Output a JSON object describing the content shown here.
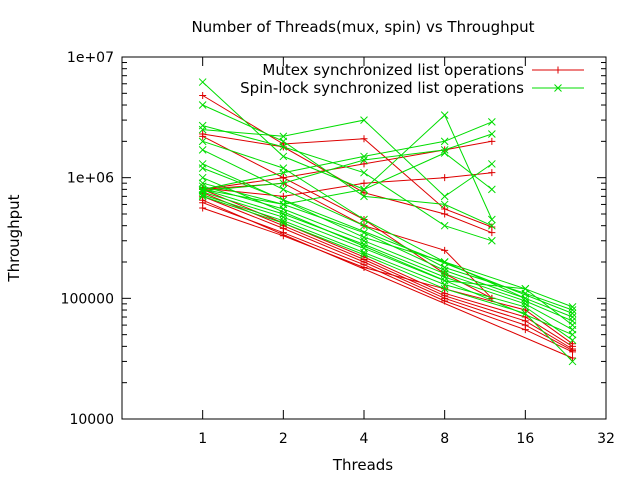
{
  "chart_data": {
    "type": "line",
    "title": "Number of Threads(mux, spin) vs Throughput",
    "xlabel": "Threads",
    "ylabel": "Throughput",
    "x_scale": "log2",
    "y_scale": "log10",
    "xlim": [
      0.5,
      32
    ],
    "ylim": [
      10000,
      10000000
    ],
    "x_ticks": [
      1,
      2,
      4,
      8,
      16,
      32
    ],
    "x_tick_labels": [
      "1",
      "2",
      "4",
      "8",
      "16",
      "32"
    ],
    "y_ticks": [
      10000,
      100000,
      1000000,
      10000000
    ],
    "y_tick_labels": [
      "10000",
      "100000",
      "1e+06",
      "1e+07"
    ],
    "grid": false,
    "legend_position": "top-right",
    "colors": {
      "mutex": "#dd0000",
      "spin": "#00dd00"
    },
    "series": [
      {
        "name": "Mutex synchronized list operations",
        "color": "#dd0000",
        "marker": "plus",
        "lines": [
          {
            "x": [
              1,
              2,
              4,
              8,
              12
            ],
            "y": [
              4800000,
              1900000,
              2100000,
              550000,
              390000
            ]
          },
          {
            "x": [
              1,
              2,
              4,
              8,
              12
            ],
            "y": [
              2300000,
              1800000,
              750000,
              500000,
              350000
            ]
          },
          {
            "x": [
              1,
              2,
              4,
              8,
              12
            ],
            "y": [
              800000,
              1000000,
              1300000,
              1700000,
              2000000
            ]
          },
          {
            "x": [
              1,
              2,
              4,
              8,
              12
            ],
            "y": [
              2200000,
              1000000,
              450000,
              160000,
              100000
            ]
          },
          {
            "x": [
              1,
              2,
              4,
              8,
              16,
              24
            ],
            "y": [
              800000,
              420000,
              220000,
              110000,
              70000,
              40000
            ]
          },
          {
            "x": [
              1,
              2,
              4,
              8,
              16,
              24
            ],
            "y": [
              750000,
              400000,
              210000,
              105000,
              65000,
              38000
            ]
          },
          {
            "x": [
              1,
              2,
              4,
              8,
              16,
              24
            ],
            "y": [
              700000,
              380000,
              200000,
              100000,
              60000,
              37000
            ]
          },
          {
            "x": [
              1,
              2,
              4,
              8,
              16,
              24
            ],
            "y": [
              620000,
              350000,
              190000,
              95000,
              55000,
              36000
            ]
          },
          {
            "x": [
              1,
              2,
              4,
              8,
              16,
              24
            ],
            "y": [
              560000,
              330000,
              180000,
              120000,
              80000,
              42000
            ]
          },
          {
            "x": [
              1,
              2,
              4,
              8,
              12
            ],
            "y": [
              800000,
              900000,
              400000,
              250000,
              100000
            ]
          },
          {
            "x": [
              1,
              24
            ],
            "y": [
              650000,
              32000
            ]
          },
          {
            "x": [
              1,
              2,
              4,
              8,
              12
            ],
            "y": [
              820000,
              700000,
              900000,
              1000000,
              1100000
            ]
          }
        ]
      },
      {
        "name": "Spin-lock synchronized list operations",
        "color": "#00dd00",
        "marker": "x",
        "lines": [
          {
            "x": [
              1,
              2,
              4,
              8,
              12
            ],
            "y": [
              6200000,
              1500000,
              800000,
              3300000,
              450000
            ]
          },
          {
            "x": [
              1,
              2,
              4,
              8,
              12
            ],
            "y": [
              4000000,
              2000000,
              700000,
              600000,
              400000
            ]
          },
          {
            "x": [
              1,
              2,
              4,
              8,
              12
            ],
            "y": [
              800000,
              1100000,
              1500000,
              2000000,
              2900000
            ]
          },
          {
            "x": [
              1,
              2,
              4,
              8,
              12
            ],
            "y": [
              780000,
              900000,
              1400000,
              1700000,
              2300000
            ]
          },
          {
            "x": [
              1,
              2,
              4,
              8,
              12
            ],
            "y": [
              2500000,
              2200000,
              3000000,
              700000,
              1300000
            ]
          },
          {
            "x": [
              1,
              2,
              4,
              8,
              16,
              24
            ],
            "y": [
              2000000,
              1200000,
              450000,
              200000,
              120000,
              85000
            ]
          },
          {
            "x": [
              1,
              2,
              4,
              8,
              16,
              24
            ],
            "y": [
              1700000,
              800000,
              400000,
              180000,
              110000,
              80000
            ]
          },
          {
            "x": [
              1,
              2,
              4,
              8,
              16,
              24
            ],
            "y": [
              900000,
              600000,
              350000,
              170000,
              100000,
              70000
            ]
          },
          {
            "x": [
              1,
              2,
              4,
              8,
              16,
              24
            ],
            "y": [
              850000,
              550000,
              300000,
              160000,
              95000,
              65000
            ]
          },
          {
            "x": [
              1,
              2,
              4,
              8,
              16,
              24
            ],
            "y": [
              800000,
              500000,
              280000,
              150000,
              90000,
              55000
            ]
          },
          {
            "x": [
              1,
              2,
              4,
              8,
              16,
              24
            ],
            "y": [
              760000,
              470000,
              260000,
              140000,
              120000,
              60000
            ]
          },
          {
            "x": [
              1,
              2,
              4,
              8,
              16,
              24
            ],
            "y": [
              720000,
              440000,
              240000,
              130000,
              85000,
              45000
            ]
          },
          {
            "x": [
              1,
              2,
              4,
              8,
              16,
              24
            ],
            "y": [
              700000,
              420000,
              230000,
              120000,
              75000,
              30000
            ]
          },
          {
            "x": [
              1,
              2,
              4,
              8,
              16
            ],
            "y": [
              1300000,
              650000,
              320000,
              200000,
              100000
            ]
          },
          {
            "x": [
              1,
              2,
              4,
              8,
              12
            ],
            "y": [
              2700000,
              1800000,
              1100000,
              400000,
              300000
            ]
          },
          {
            "x": [
              1,
              2,
              4,
              8,
              12
            ],
            "y": [
              800000,
              600000,
              800000,
              1600000,
              800000
            ]
          },
          {
            "x": [
              1,
              24
            ],
            "y": [
              1200000,
              75000
            ]
          },
          {
            "x": [
              1,
              24
            ],
            "y": [
              1000000,
              50000
            ]
          }
        ]
      }
    ]
  }
}
